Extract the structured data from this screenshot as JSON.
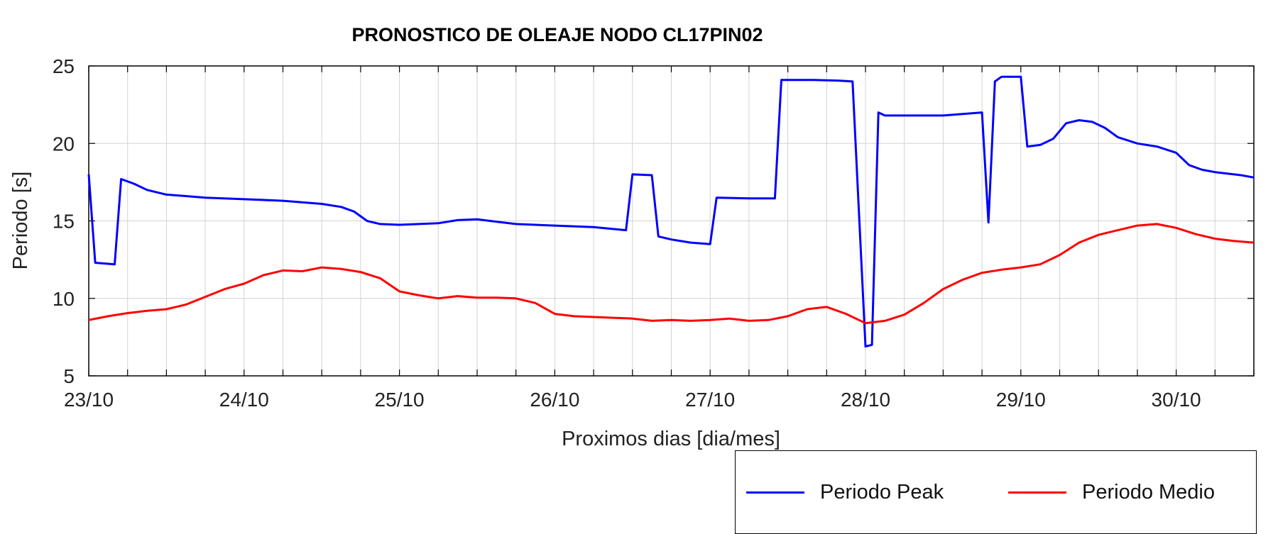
{
  "chart_data": {
    "type": "line",
    "title": "PRONOSTICO DE OLEAJE NODO CL17PIN02",
    "xlabel": "Proximos dias [dia/mes]",
    "ylabel": "Periodo [s]",
    "xlim": [
      "23/10",
      "30/10 12h"
    ],
    "ylim": [
      5,
      25
    ],
    "x_tick_labels": [
      "23/10",
      "24/10",
      "25/10",
      "26/10",
      "27/10",
      "28/10",
      "29/10",
      "30/10"
    ],
    "y_ticks": [
      5,
      10,
      15,
      20,
      25
    ],
    "grid": true,
    "legend_position": "bottom-right, below axes",
    "series": [
      {
        "name": "Periodo Peak",
        "color": "#0000ff",
        "points": [
          [
            "23/10 00h",
            18.0
          ],
          [
            "23/10 01h",
            12.3
          ],
          [
            "23/10 04h",
            12.2
          ],
          [
            "23/10 05h",
            17.7
          ],
          [
            "23/10 07h",
            17.4
          ],
          [
            "23/10 09h",
            17.0
          ],
          [
            "23/10 12h",
            16.7
          ],
          [
            "23/10 15h",
            16.6
          ],
          [
            "23/10 18h",
            16.5
          ],
          [
            "24/10 00h",
            16.4
          ],
          [
            "24/10 06h",
            16.3
          ],
          [
            "24/10 12h",
            16.1
          ],
          [
            "24/10 15h",
            15.9
          ],
          [
            "24/10 17h",
            15.6
          ],
          [
            "24/10 19h",
            15.0
          ],
          [
            "24/10 21h",
            14.8
          ],
          [
            "25/10 00h",
            14.75
          ],
          [
            "25/10 06h",
            14.85
          ],
          [
            "25/10 09h",
            15.05
          ],
          [
            "25/10 12h",
            15.1
          ],
          [
            "25/10 15h",
            14.95
          ],
          [
            "25/10 18h",
            14.8
          ],
          [
            "26/10 00h",
            14.7
          ],
          [
            "26/10 06h",
            14.6
          ],
          [
            "26/10 11h",
            14.4
          ],
          [
            "26/10 12h",
            18.0
          ],
          [
            "26/10 15h",
            17.95
          ],
          [
            "26/10 16h",
            14.0
          ],
          [
            "26/10 18h",
            13.8
          ],
          [
            "26/10 21h",
            13.6
          ],
          [
            "27/10 00h",
            13.5
          ],
          [
            "27/10 01h",
            16.5
          ],
          [
            "27/10 06h",
            16.45
          ],
          [
            "27/10 10h",
            16.45
          ],
          [
            "27/10 11h",
            24.1
          ],
          [
            "27/10 16h",
            24.1
          ],
          [
            "27/10 20h",
            24.05
          ],
          [
            "27/10 22h",
            24.0
          ],
          [
            "28/10 00h",
            6.9
          ],
          [
            "28/10 01h",
            7.0
          ],
          [
            "28/10 02h",
            22.0
          ],
          [
            "28/10 03h",
            21.8
          ],
          [
            "28/10 12h",
            21.8
          ],
          [
            "28/10 18h",
            22.0
          ],
          [
            "28/10 19h",
            14.9
          ],
          [
            "28/10 20h",
            24.0
          ],
          [
            "28/10 21h",
            24.3
          ],
          [
            "29/10 00h",
            24.3
          ],
          [
            "29/10 01h",
            19.8
          ],
          [
            "29/10 03h",
            19.9
          ],
          [
            "29/10 05h",
            20.3
          ],
          [
            "29/10 07h",
            21.3
          ],
          [
            "29/10 09h",
            21.5
          ],
          [
            "29/10 11h",
            21.4
          ],
          [
            "29/10 13h",
            21.0
          ],
          [
            "29/10 15h",
            20.4
          ],
          [
            "29/10 18h",
            20.0
          ],
          [
            "29/10 21h",
            19.8
          ],
          [
            "30/10 00h",
            19.4
          ],
          [
            "30/10 01h",
            19.0
          ],
          [
            "30/10 02h",
            18.6
          ],
          [
            "30/10 04h",
            18.3
          ],
          [
            "30/10 06h",
            18.15
          ],
          [
            "30/10 08h",
            18.05
          ],
          [
            "30/10 10h",
            17.95
          ],
          [
            "30/10 12h",
            17.8
          ]
        ]
      },
      {
        "name": "Periodo Medio",
        "color": "#ff0000",
        "points": [
          [
            "23/10 00h",
            8.6
          ],
          [
            "23/10 03h",
            8.85
          ],
          [
            "23/10 06h",
            9.05
          ],
          [
            "23/10 09h",
            9.2
          ],
          [
            "23/10 12h",
            9.3
          ],
          [
            "23/10 15h",
            9.6
          ],
          [
            "23/10 18h",
            10.1
          ],
          [
            "23/10 21h",
            10.6
          ],
          [
            "24/10 00h",
            10.95
          ],
          [
            "24/10 03h",
            11.5
          ],
          [
            "24/10 06h",
            11.8
          ],
          [
            "24/10 09h",
            11.75
          ],
          [
            "24/10 12h",
            12.0
          ],
          [
            "24/10 15h",
            11.9
          ],
          [
            "24/10 18h",
            11.7
          ],
          [
            "24/10 21h",
            11.3
          ],
          [
            "25/10 00h",
            10.45
          ],
          [
            "25/10 03h",
            10.2
          ],
          [
            "25/10 06h",
            10.0
          ],
          [
            "25/10 09h",
            10.15
          ],
          [
            "25/10 12h",
            10.05
          ],
          [
            "25/10 15h",
            10.05
          ],
          [
            "25/10 18h",
            10.0
          ],
          [
            "25/10 21h",
            9.7
          ],
          [
            "26/10 00h",
            9.0
          ],
          [
            "26/10 03h",
            8.85
          ],
          [
            "26/10 06h",
            8.8
          ],
          [
            "26/10 09h",
            8.75
          ],
          [
            "26/10 12h",
            8.7
          ],
          [
            "26/10 15h",
            8.55
          ],
          [
            "26/10 18h",
            8.6
          ],
          [
            "26/10 21h",
            8.55
          ],
          [
            "27/10 00h",
            8.6
          ],
          [
            "27/10 03h",
            8.7
          ],
          [
            "27/10 06h",
            8.55
          ],
          [
            "27/10 09h",
            8.6
          ],
          [
            "27/10 12h",
            8.85
          ],
          [
            "27/10 15h",
            9.3
          ],
          [
            "27/10 18h",
            9.45
          ],
          [
            "27/10 21h",
            9.0
          ],
          [
            "28/10 00h",
            8.4
          ],
          [
            "28/10 03h",
            8.55
          ],
          [
            "28/10 06h",
            8.95
          ],
          [
            "28/10 09h",
            9.7
          ],
          [
            "28/10 12h",
            10.6
          ],
          [
            "28/10 15h",
            11.2
          ],
          [
            "28/10 18h",
            11.65
          ],
          [
            "28/10 21h",
            11.85
          ],
          [
            "29/10 00h",
            12.0
          ],
          [
            "29/10 03h",
            12.2
          ],
          [
            "29/10 06h",
            12.8
          ],
          [
            "29/10 09h",
            13.6
          ],
          [
            "29/10 12h",
            14.1
          ],
          [
            "29/10 15h",
            14.4
          ],
          [
            "29/10 18h",
            14.7
          ],
          [
            "29/10 21h",
            14.8
          ],
          [
            "30/10 00h",
            14.55
          ],
          [
            "30/10 03h",
            14.15
          ],
          [
            "30/10 06h",
            13.85
          ],
          [
            "30/10 09h",
            13.7
          ],
          [
            "30/10 12h",
            13.6
          ]
        ]
      }
    ]
  }
}
